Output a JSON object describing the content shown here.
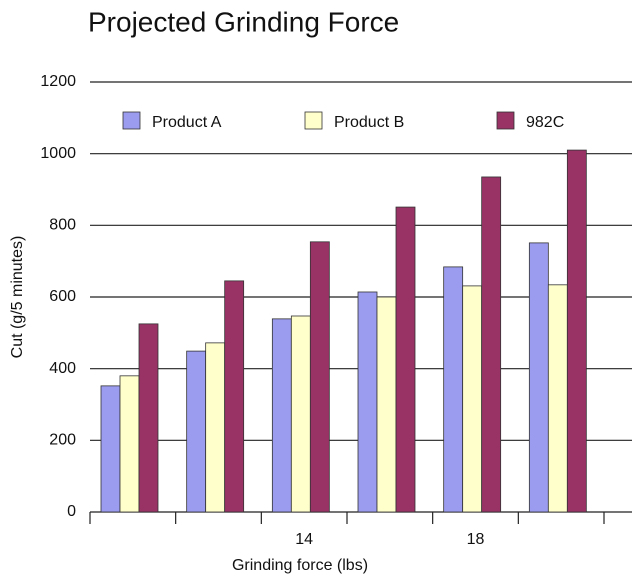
{
  "chart_data": {
    "type": "bar",
    "title": "Projected Grinding Force",
    "xlabel": "Grinding force (lbs)",
    "ylabel": "Cut (g/5 minutes)",
    "categories": [
      null,
      null,
      "14",
      null,
      "18",
      null
    ],
    "series": [
      {
        "name": "Product A",
        "color": "#9b9bf0",
        "values": [
          352,
          449,
          539,
          614,
          684,
          751
        ]
      },
      {
        "name": "Product B",
        "color": "#ffffcc",
        "values": [
          380,
          472,
          547,
          600,
          631,
          634
        ]
      },
      {
        "name": "982C",
        "color": "#993366",
        "values": [
          525,
          645,
          754,
          851,
          935,
          1010
        ]
      }
    ],
    "ylim": [
      0,
      1200
    ],
    "yticks": [
      0,
      200,
      400,
      600,
      800,
      1000,
      1200
    ],
    "grid": true,
    "legend": "top"
  }
}
